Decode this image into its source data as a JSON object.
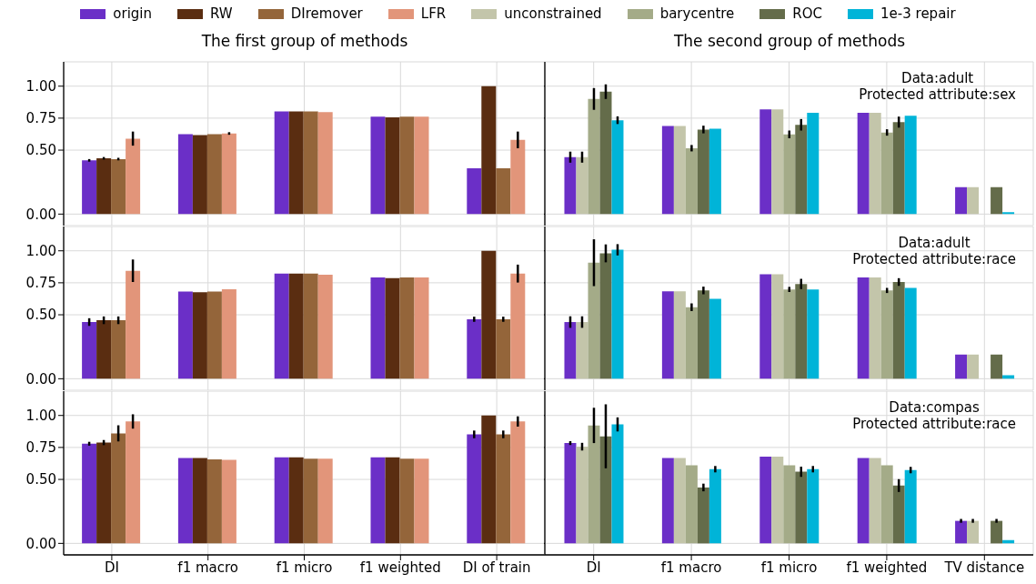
{
  "chart_data": [
    {
      "type": "bar",
      "title": "The first group of methods",
      "categories": [
        "DI",
        "f1 macro",
        "f1 micro",
        "f1 weighted",
        "DI of train"
      ],
      "ylim": [
        -0.09,
        1.19
      ],
      "yticks": [
        {
          "value": 0,
          "label": "0.00"
        },
        {
          "value": 0.5,
          "label": "0.50"
        },
        {
          "value": 0.75,
          "label": "0.75"
        },
        {
          "value": 1,
          "label": "1.00"
        }
      ],
      "grid": true,
      "legend": "top",
      "tick_labels": "y",
      "series": [
        {
          "name": "origin",
          "color": "#6b2fc7",
          "values": [
            0.42,
            0.625,
            0.803,
            0.761,
            0.358
          ],
          "errors": [
            0.01,
            null,
            null,
            null,
            null
          ]
        },
        {
          "name": "RW",
          "color": "#5a2d11",
          "values": [
            0.436,
            0.617,
            0.803,
            0.756,
            1.0
          ],
          "errors": [
            0.01,
            null,
            null,
            null,
            null
          ]
        },
        {
          "name": "DIremover",
          "color": "#94653a",
          "values": [
            0.43,
            0.625,
            0.803,
            0.761,
            0.358
          ],
          "errors": [
            0.01,
            null,
            null,
            null,
            null
          ]
        },
        {
          "name": "LFR",
          "color": "#e2957a",
          "values": [
            0.59,
            0.63,
            0.797,
            0.761,
            0.58
          ],
          "errors": [
            0.055,
            0.01,
            null,
            null,
            0.065
          ]
        }
      ]
    },
    {
      "type": "bar",
      "title": "The second group of methods",
      "categories": [
        "DI",
        "f1 macro",
        "f1 micro",
        "f1 weighted",
        "TV distance"
      ],
      "ylim": [
        -0.09,
        1.19
      ],
      "yticks": [
        {
          "value": 0,
          "label": null
        },
        {
          "value": 0.5,
          "label": null
        },
        {
          "value": 0.75,
          "label": null
        },
        {
          "value": 1,
          "label": null
        }
      ],
      "grid": true,
      "legend": "top",
      "tick_labels": false,
      "annotations": [
        "Data:adult",
        "Protected attribute:sex"
      ],
      "series": [
        {
          "name": "origin",
          "color": "#6b2fc7",
          "values": [
            0.445,
            0.688,
            0.819,
            0.791,
            0.211
          ],
          "errors": [
            0.043,
            null,
            null,
            null,
            null
          ]
        },
        {
          "name": "unconstrained",
          "color": "#c3c5aa",
          "values": [
            0.445,
            0.688,
            0.819,
            0.791,
            0.211
          ],
          "errors": [
            0.043,
            null,
            null,
            null,
            null
          ]
        },
        {
          "name": "barycentre",
          "color": "#a4ab88",
          "values": [
            0.9,
            0.515,
            0.623,
            0.638,
            0.0
          ],
          "errors": [
            0.085,
            0.025,
            0.03,
            0.025,
            null
          ]
        },
        {
          "name": "ROC",
          "color": "#646c4a",
          "values": [
            0.957,
            0.661,
            0.698,
            0.719,
            0.211
          ],
          "errors": [
            0.057,
            0.03,
            0.045,
            0.043,
            null
          ]
        },
        {
          "name": "1e-3 repair",
          "color": "#00b4d8",
          "values": [
            0.734,
            0.668,
            0.791,
            0.769,
            0.015
          ],
          "errors": [
            0.03,
            null,
            null,
            null,
            null
          ]
        }
      ]
    },
    {
      "type": "bar",
      "categories": [
        "DI",
        "f1 macro",
        "f1 micro",
        "f1 weighted",
        "DI of train"
      ],
      "ylim": [
        -0.09,
        1.19
      ],
      "yticks": [
        {
          "value": 0,
          "label": "0.00"
        },
        {
          "value": 0.5,
          "label": "0.50"
        },
        {
          "value": 0.75,
          "label": "0.75"
        },
        {
          "value": 1,
          "label": "1.00"
        }
      ],
      "grid": true,
      "tick_labels": "y",
      "series": [
        {
          "color": "#6b2fc7",
          "values": [
            0.443,
            0.682,
            0.822,
            0.791,
            0.465
          ],
          "errors": [
            0.03,
            null,
            null,
            null,
            0.02
          ]
        },
        {
          "color": "#5a2d11",
          "values": [
            0.457,
            0.677,
            0.822,
            0.786,
            1.0
          ],
          "errors": [
            0.03,
            null,
            null,
            null,
            null
          ]
        },
        {
          "color": "#94653a",
          "values": [
            0.457,
            0.682,
            0.822,
            0.791,
            0.465
          ],
          "errors": [
            0.03,
            null,
            null,
            null,
            0.02
          ]
        },
        {
          "color": "#e2957a",
          "values": [
            0.844,
            0.699,
            0.813,
            0.791,
            0.822
          ],
          "errors": [
            0.088,
            null,
            null,
            null,
            0.07
          ]
        }
      ]
    },
    {
      "type": "bar",
      "categories": [
        "DI",
        "f1 macro",
        "f1 micro",
        "f1 weighted",
        "TV distance"
      ],
      "ylim": [
        -0.09,
        1.19
      ],
      "yticks": [
        {
          "value": 0,
          "label": null
        },
        {
          "value": 0.5,
          "label": null
        },
        {
          "value": 0.75,
          "label": null
        },
        {
          "value": 1,
          "label": null
        }
      ],
      "grid": true,
      "tick_labels": false,
      "annotations": [
        "Data:adult",
        "Protected attribute:race"
      ],
      "series": [
        {
          "color": "#6b2fc7",
          "values": [
            0.443,
            0.683,
            0.816,
            0.791,
            0.189
          ],
          "errors": [
            0.045,
            null,
            null,
            null,
            null
          ]
        },
        {
          "color": "#c3c5aa",
          "values": [
            0.443,
            0.683,
            0.816,
            0.791,
            0.189
          ],
          "errors": [
            0.045,
            null,
            null,
            null,
            null
          ]
        },
        {
          "color": "#a4ab88",
          "values": [
            0.907,
            0.559,
            0.698,
            0.69,
            0.0
          ],
          "errors": [
            0.183,
            0.03,
            0.02,
            0.02,
            null
          ]
        },
        {
          "color": "#646c4a",
          "values": [
            0.98,
            0.69,
            0.741,
            0.756,
            0.189
          ],
          "errors": [
            0.07,
            0.03,
            0.04,
            0.03,
            null
          ]
        },
        {
          "color": "#00b4d8",
          "values": [
            1.008,
            0.625,
            0.698,
            0.71,
            0.028
          ],
          "errors": [
            0.044,
            null,
            null,
            null,
            null
          ]
        }
      ]
    },
    {
      "type": "bar",
      "categories": [
        "DI",
        "f1 macro",
        "f1 micro",
        "f1 weighted",
        "DI of train"
      ],
      "ylim": [
        -0.09,
        1.19
      ],
      "yticks": [
        {
          "value": 0,
          "label": "0.00"
        },
        {
          "value": 0.5,
          "label": "0.50"
        },
        {
          "value": 0.75,
          "label": "0.75"
        },
        {
          "value": 1,
          "label": "1.00"
        }
      ],
      "grid": true,
      "series": [
        {
          "color": "#6b2fc7",
          "values": [
            0.779,
            0.668,
            0.673,
            0.673,
            0.852
          ],
          "errors": [
            0.015,
            null,
            null,
            null,
            0.03
          ]
        },
        {
          "color": "#5a2d11",
          "values": [
            0.788,
            0.668,
            0.673,
            0.673,
            1.0
          ],
          "errors": [
            0.02,
            null,
            null,
            null,
            null
          ]
        },
        {
          "color": "#94653a",
          "values": [
            0.86,
            0.656,
            0.662,
            0.662,
            0.852
          ],
          "errors": [
            0.063,
            null,
            null,
            null,
            0.03
          ]
        },
        {
          "color": "#e2957a",
          "values": [
            0.953,
            0.654,
            0.662,
            0.662,
            0.953
          ],
          "errors": [
            0.056,
            null,
            null,
            null,
            0.04
          ]
        }
      ]
    },
    {
      "type": "bar",
      "categories": [
        "DI",
        "f1 macro",
        "f1 micro",
        "f1 weighted",
        "TV distance"
      ],
      "ylim": [
        -0.09,
        1.19
      ],
      "yticks": [
        {
          "value": 0,
          "label": null
        },
        {
          "value": 0.5,
          "label": null
        },
        {
          "value": 0.75,
          "label": null
        },
        {
          "value": 1,
          "label": null
        }
      ],
      "grid": true,
      "tick_labels": "x",
      "annotations": [
        "Data:compas",
        "Protected attribute:race"
      ],
      "series": [
        {
          "color": "#6b2fc7",
          "values": [
            0.784,
            0.668,
            0.678,
            0.668,
            0.176
          ],
          "errors": [
            0.015,
            null,
            null,
            null,
            0.015
          ]
        },
        {
          "color": "#c3c5aa",
          "values": [
            0.756,
            0.668,
            0.678,
            0.668,
            0.176
          ],
          "errors": [
            0.03,
            null,
            null,
            null,
            0.015
          ]
        },
        {
          "color": "#a4ab88",
          "values": [
            0.922,
            0.611,
            0.611,
            0.611,
            0.0
          ],
          "errors": [
            0.138,
            null,
            null,
            null,
            null
          ]
        },
        {
          "color": "#646c4a",
          "values": [
            0.837,
            0.437,
            0.56,
            0.452,
            0.176
          ],
          "errors": [
            0.25,
            0.03,
            0.04,
            0.05,
            0.015
          ]
        },
        {
          "color": "#00b4d8",
          "values": [
            0.93,
            0.58,
            0.58,
            0.573,
            0.025
          ],
          "errors": [
            0.055,
            0.025,
            0.025,
            0.025,
            null
          ]
        }
      ]
    }
  ]
}
